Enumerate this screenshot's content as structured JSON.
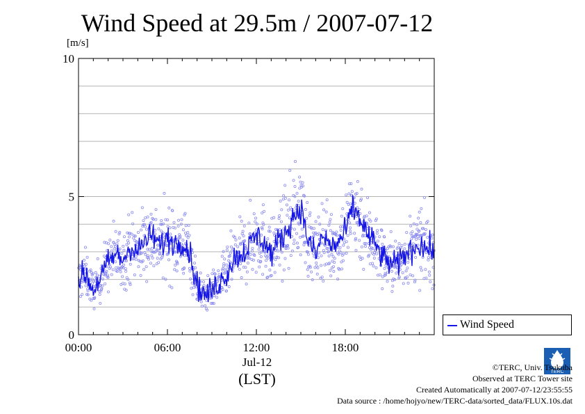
{
  "chart_data": {
    "type": "line",
    "title": "Wind Speed at 29.5m / 2007-07-12",
    "ylabel": "[m/s]",
    "xlabel_date": "Jul-12",
    "xlabel": "(LST)",
    "ylim": [
      0,
      10
    ],
    "xlim_hours": [
      0,
      24
    ],
    "y_ticks": [
      "0",
      "5",
      "10"
    ],
    "x_ticks": [
      {
        "hour": 0,
        "label": "00:00"
      },
      {
        "hour": 6,
        "label": "06:00"
      },
      {
        "hour": 12,
        "label": "12:00"
      },
      {
        "hour": 18,
        "label": "18:00"
      }
    ],
    "grid": true,
    "legend_position": "bottom-right",
    "series": [
      {
        "name": "Wind Speed",
        "color": "#1414e6",
        "scatter_color": "#8c8cf0",
        "x_hours": [
          0,
          0.5,
          1,
          1.5,
          2,
          2.5,
          3,
          3.5,
          4,
          4.5,
          5,
          5.5,
          6,
          6.5,
          7,
          7.5,
          8,
          8.5,
          9,
          9.5,
          10,
          10.5,
          11,
          11.5,
          12,
          12.5,
          13,
          13.5,
          14,
          14.5,
          15,
          15.5,
          16,
          16.5,
          17,
          17.5,
          18,
          18.5,
          19,
          19.5,
          20,
          20.5,
          21,
          21.5,
          22,
          22.5,
          23,
          23.5
        ],
        "values": [
          2.0,
          2.2,
          1.6,
          2.1,
          2.6,
          2.9,
          2.7,
          3.2,
          3.0,
          3.4,
          3.6,
          3.2,
          3.5,
          3.3,
          3.4,
          3.0,
          1.8,
          1.4,
          1.6,
          1.9,
          2.2,
          2.8,
          2.9,
          3.2,
          3.6,
          3.4,
          2.9,
          3.4,
          3.7,
          4.3,
          4.6,
          3.4,
          2.9,
          3.6,
          3.2,
          3.3,
          3.7,
          4.6,
          4.2,
          3.6,
          3.3,
          2.8,
          2.6,
          2.5,
          2.9,
          3.1,
          3.3,
          3.1
        ]
      }
    ]
  },
  "legend": {
    "label": "Wind Speed"
  },
  "credits": {
    "copyright": "©TERC, Univ. Tsukuba",
    "observed": "Observed at TERC Tower site",
    "created": "Created Automatically at 2007-07-12/23:55:55",
    "source": "Data source : /home/hojyo/new/TERC-data/sorted_data/FLUX.10s.dat"
  },
  "logo_label": "TERC"
}
